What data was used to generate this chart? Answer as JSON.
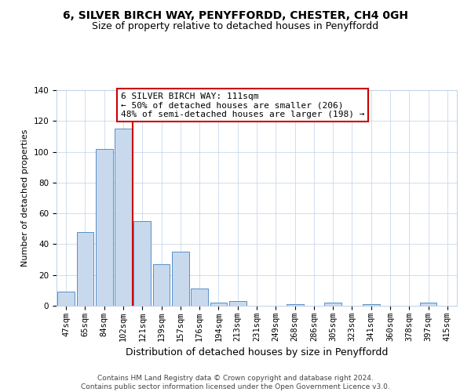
{
  "title": "6, SILVER BIRCH WAY, PENYFFORDD, CHESTER, CH4 0GH",
  "subtitle": "Size of property relative to detached houses in Penyffordd",
  "xlabel": "Distribution of detached houses by size in Penyffordd",
  "ylabel": "Number of detached properties",
  "bar_labels": [
    "47sqm",
    "65sqm",
    "84sqm",
    "102sqm",
    "121sqm",
    "139sqm",
    "157sqm",
    "176sqm",
    "194sqm",
    "213sqm",
    "231sqm",
    "249sqm",
    "268sqm",
    "286sqm",
    "305sqm",
    "323sqm",
    "341sqm",
    "360sqm",
    "378sqm",
    "397sqm",
    "415sqm"
  ],
  "bar_values": [
    9,
    48,
    102,
    115,
    55,
    27,
    35,
    11,
    2,
    3,
    0,
    0,
    1,
    0,
    2,
    0,
    1,
    0,
    0,
    2,
    0
  ],
  "bar_color": "#c8d9ee",
  "bar_edge_color": "#5590c8",
  "vline_color": "#cc0000",
  "annotation_text": "6 SILVER BIRCH WAY: 111sqm\n← 50% of detached houses are smaller (206)\n48% of semi-detached houses are larger (198) →",
  "annotation_box_color": "#ffffff",
  "annotation_box_edge_color": "#cc0000",
  "ylim": [
    0,
    140
  ],
  "yticks": [
    0,
    20,
    40,
    60,
    80,
    100,
    120,
    140
  ],
  "footer_text": "Contains HM Land Registry data © Crown copyright and database right 2024.\nContains public sector information licensed under the Open Government Licence v3.0.",
  "title_fontsize": 10,
  "subtitle_fontsize": 9,
  "xlabel_fontsize": 9,
  "ylabel_fontsize": 8,
  "tick_fontsize": 7.5,
  "footer_fontsize": 6.5,
  "annotation_fontsize": 8
}
